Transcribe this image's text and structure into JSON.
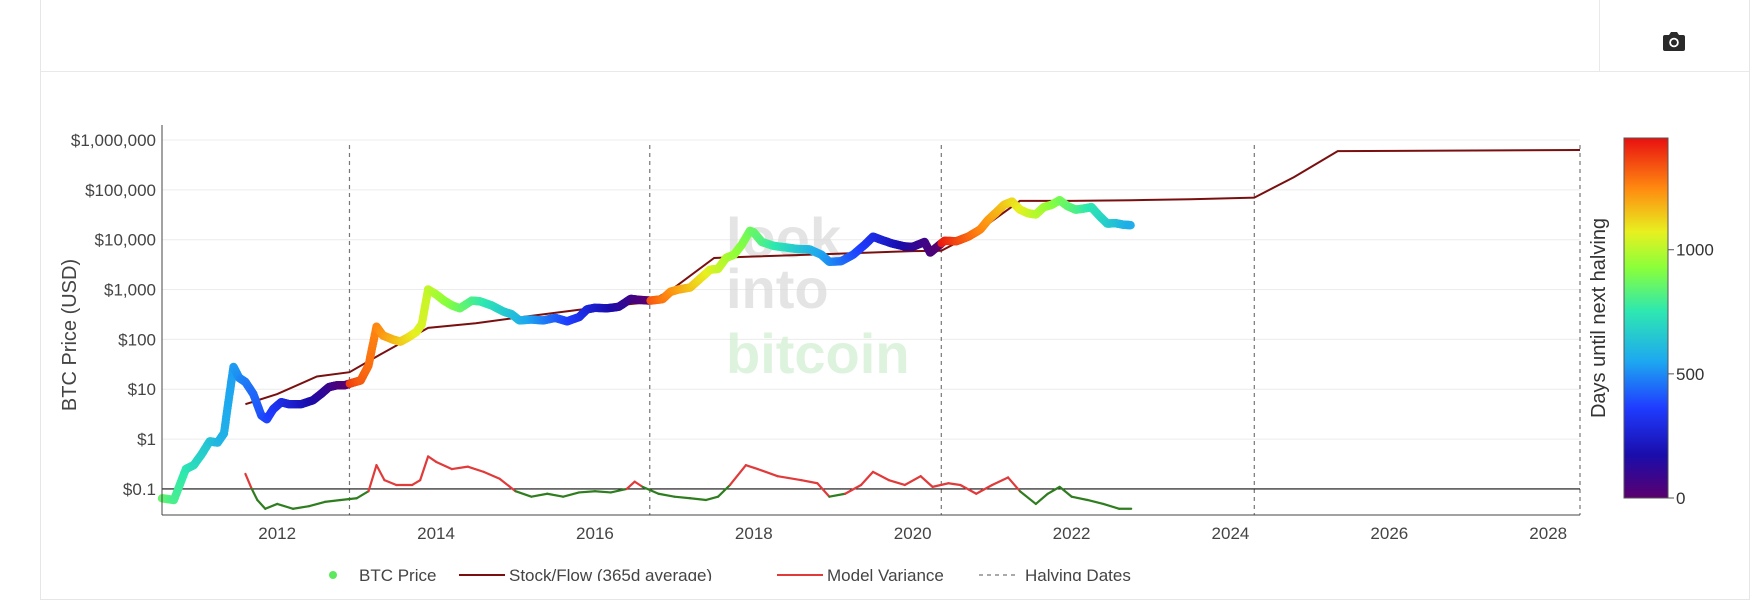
{
  "toolbar": {
    "icon": "camera-icon"
  },
  "chart_data": {
    "type": "line",
    "y_scale": "log",
    "xlim": [
      2010.55,
      2028.4
    ],
    "ylim": [
      0.03,
      2000000
    ],
    "ylabel": "BTC Price (USD)",
    "colorbar_label": "Days until next halving",
    "colorbar_range": [
      0,
      1450
    ],
    "colorbar_ticks": [
      {
        "value": 0,
        "label": "0"
      },
      {
        "value": 500,
        "label": "500"
      },
      {
        "value": 1000,
        "label": "1000"
      }
    ],
    "y_ticks": [
      {
        "value": 0.1,
        "label": "$0.1"
      },
      {
        "value": 1,
        "label": "$1"
      },
      {
        "value": 10,
        "label": "$10"
      },
      {
        "value": 100,
        "label": "$100"
      },
      {
        "value": 1000,
        "label": "$1,000"
      },
      {
        "value": 10000,
        "label": "$10,000"
      },
      {
        "value": 100000,
        "label": "$100,000"
      },
      {
        "value": 1000000,
        "label": "$1,000,000"
      }
    ],
    "x_ticks": [
      {
        "value": 2012,
        "label": "2012"
      },
      {
        "value": 2014,
        "label": "2014"
      },
      {
        "value": 2016,
        "label": "2016"
      },
      {
        "value": 2018,
        "label": "2018"
      },
      {
        "value": 2020,
        "label": "2020"
      },
      {
        "value": 2022,
        "label": "2022"
      },
      {
        "value": 2024,
        "label": "2024"
      },
      {
        "value": 2026,
        "label": "2026"
      },
      {
        "value": 2028,
        "label": "2028"
      }
    ],
    "reference_line": 0.1,
    "halving_dates": [
      2012.91,
      2016.69,
      2020.36,
      2024.3,
      2028.4
    ],
    "colors": {
      "stock_flow": "#7a0f0f",
      "variance_positive": "#e03a3a",
      "variance_negative": "#2e7d1e",
      "halving": "#777777",
      "grid": "#ececec",
      "axis": "#444444",
      "legend_dot": "#5ee85e"
    },
    "series": [
      {
        "name": "BTC Price",
        "kind": "scatter-colored",
        "points": [
          [
            2010.55,
            0.065
          ],
          [
            2010.7,
            0.06
          ],
          [
            2010.85,
            0.25
          ],
          [
            2010.95,
            0.3
          ],
          [
            2011.05,
            0.5
          ],
          [
            2011.15,
            0.9
          ],
          [
            2011.25,
            0.85
          ],
          [
            2011.33,
            1.3
          ],
          [
            2011.4,
            8
          ],
          [
            2011.45,
            28
          ],
          [
            2011.52,
            17
          ],
          [
            2011.6,
            14
          ],
          [
            2011.7,
            8
          ],
          [
            2011.8,
            3
          ],
          [
            2011.87,
            2.5
          ],
          [
            2011.95,
            4
          ],
          [
            2012.05,
            5.5
          ],
          [
            2012.15,
            5
          ],
          [
            2012.3,
            5
          ],
          [
            2012.45,
            6
          ],
          [
            2012.55,
            8
          ],
          [
            2012.65,
            11
          ],
          [
            2012.75,
            12
          ],
          [
            2012.85,
            12
          ],
          [
            2012.95,
            13.5
          ],
          [
            2013.05,
            15
          ],
          [
            2013.15,
            30
          ],
          [
            2013.25,
            180
          ],
          [
            2013.33,
            120
          ],
          [
            2013.45,
            100
          ],
          [
            2013.55,
            90
          ],
          [
            2013.65,
            110
          ],
          [
            2013.75,
            140
          ],
          [
            2013.82,
            200
          ],
          [
            2013.9,
            1000
          ],
          [
            2014.0,
            800
          ],
          [
            2014.1,
            600
          ],
          [
            2014.2,
            480
          ],
          [
            2014.3,
            420
          ],
          [
            2014.45,
            600
          ],
          [
            2014.55,
            580
          ],
          [
            2014.7,
            480
          ],
          [
            2014.85,
            360
          ],
          [
            2014.95,
            320
          ],
          [
            2015.05,
            240
          ],
          [
            2015.2,
            250
          ],
          [
            2015.35,
            240
          ],
          [
            2015.5,
            270
          ],
          [
            2015.65,
            230
          ],
          [
            2015.8,
            280
          ],
          [
            2015.9,
            400
          ],
          [
            2016.0,
            430
          ],
          [
            2016.15,
            420
          ],
          [
            2016.3,
            450
          ],
          [
            2016.45,
            650
          ],
          [
            2016.55,
            620
          ],
          [
            2016.7,
            600
          ],
          [
            2016.85,
            640
          ],
          [
            2016.95,
            900
          ],
          [
            2017.05,
            1000
          ],
          [
            2017.2,
            1100
          ],
          [
            2017.35,
            1800
          ],
          [
            2017.45,
            2500
          ],
          [
            2017.55,
            2600
          ],
          [
            2017.65,
            4300
          ],
          [
            2017.75,
            5000
          ],
          [
            2017.85,
            8000
          ],
          [
            2017.95,
            15000
          ],
          [
            2018.0,
            14000
          ],
          [
            2018.1,
            9000
          ],
          [
            2018.25,
            7500
          ],
          [
            2018.4,
            7000
          ],
          [
            2018.55,
            6500
          ],
          [
            2018.7,
            6400
          ],
          [
            2018.85,
            5000
          ],
          [
            2018.95,
            3600
          ],
          [
            2019.1,
            3700
          ],
          [
            2019.25,
            5000
          ],
          [
            2019.4,
            8000
          ],
          [
            2019.5,
            11500
          ],
          [
            2019.6,
            10000
          ],
          [
            2019.75,
            8300
          ],
          [
            2019.9,
            7300
          ],
          [
            2020.0,
            7200
          ],
          [
            2020.15,
            9000
          ],
          [
            2020.22,
            5500
          ],
          [
            2020.3,
            7000
          ],
          [
            2020.4,
            9500
          ],
          [
            2020.55,
            9300
          ],
          [
            2020.7,
            11500
          ],
          [
            2020.85,
            16000
          ],
          [
            2020.95,
            25000
          ],
          [
            2021.05,
            35000
          ],
          [
            2021.15,
            50000
          ],
          [
            2021.25,
            58000
          ],
          [
            2021.35,
            40000
          ],
          [
            2021.45,
            34000
          ],
          [
            2021.55,
            32000
          ],
          [
            2021.65,
            45000
          ],
          [
            2021.75,
            50000
          ],
          [
            2021.85,
            62000
          ],
          [
            2021.95,
            47000
          ],
          [
            2022.05,
            40000
          ],
          [
            2022.15,
            42000
          ],
          [
            2022.25,
            45000
          ],
          [
            2022.35,
            30000
          ],
          [
            2022.45,
            21000
          ],
          [
            2022.55,
            21500
          ],
          [
            2022.65,
            20000
          ],
          [
            2022.75,
            19500
          ]
        ]
      },
      {
        "name": "Stock/Flow (365d average)",
        "kind": "line",
        "points": [
          [
            2011.6,
            5
          ],
          [
            2012.0,
            8
          ],
          [
            2012.5,
            18
          ],
          [
            2012.91,
            22
          ],
          [
            2013.3,
            50
          ],
          [
            2013.9,
            170
          ],
          [
            2014.5,
            210
          ],
          [
            2015.0,
            270
          ],
          [
            2016.0,
            430
          ],
          [
            2016.69,
            560
          ],
          [
            2017.0,
            1100
          ],
          [
            2017.5,
            4300
          ],
          [
            2018.0,
            4600
          ],
          [
            2019.0,
            5200
          ],
          [
            2020.0,
            5900
          ],
          [
            2020.36,
            6000
          ],
          [
            2020.8,
            14000
          ],
          [
            2021.35,
            60000
          ],
          [
            2022.0,
            60000
          ],
          [
            2022.75,
            62000
          ],
          [
            2023.5,
            65000
          ],
          [
            2024.3,
            70000
          ],
          [
            2024.8,
            180000
          ],
          [
            2025.35,
            600000
          ],
          [
            2028.4,
            630000
          ]
        ]
      },
      {
        "name": "Model Variance",
        "kind": "line",
        "points": [
          [
            2011.6,
            0.2
          ],
          [
            2011.68,
            0.1
          ],
          [
            2011.75,
            0.06
          ],
          [
            2011.85,
            0.04
          ],
          [
            2012.0,
            0.05
          ],
          [
            2012.2,
            0.04
          ],
          [
            2012.4,
            0.045
          ],
          [
            2012.6,
            0.055
          ],
          [
            2012.8,
            0.06
          ],
          [
            2013.0,
            0.065
          ],
          [
            2013.15,
            0.09
          ],
          [
            2013.25,
            0.3
          ],
          [
            2013.35,
            0.15
          ],
          [
            2013.5,
            0.12
          ],
          [
            2013.7,
            0.12
          ],
          [
            2013.8,
            0.15
          ],
          [
            2013.9,
            0.45
          ],
          [
            2014.0,
            0.35
          ],
          [
            2014.2,
            0.25
          ],
          [
            2014.4,
            0.28
          ],
          [
            2014.6,
            0.22
          ],
          [
            2014.8,
            0.16
          ],
          [
            2015.0,
            0.09
          ],
          [
            2015.2,
            0.07
          ],
          [
            2015.4,
            0.08
          ],
          [
            2015.6,
            0.07
          ],
          [
            2015.8,
            0.085
          ],
          [
            2016.0,
            0.09
          ],
          [
            2016.2,
            0.085
          ],
          [
            2016.4,
            0.1
          ],
          [
            2016.5,
            0.14
          ],
          [
            2016.6,
            0.11
          ],
          [
            2016.8,
            0.08
          ],
          [
            2017.0,
            0.07
          ],
          [
            2017.2,
            0.065
          ],
          [
            2017.4,
            0.06
          ],
          [
            2017.55,
            0.07
          ],
          [
            2017.7,
            0.12
          ],
          [
            2017.9,
            0.3
          ],
          [
            2018.05,
            0.25
          ],
          [
            2018.3,
            0.18
          ],
          [
            2018.6,
            0.15
          ],
          [
            2018.8,
            0.13
          ],
          [
            2018.95,
            0.07
          ],
          [
            2019.15,
            0.08
          ],
          [
            2019.35,
            0.12
          ],
          [
            2019.5,
            0.22
          ],
          [
            2019.7,
            0.15
          ],
          [
            2019.9,
            0.12
          ],
          [
            2020.1,
            0.18
          ],
          [
            2020.25,
            0.11
          ],
          [
            2020.45,
            0.13
          ],
          [
            2020.6,
            0.12
          ],
          [
            2020.8,
            0.08
          ],
          [
            2021.0,
            0.12
          ],
          [
            2021.2,
            0.17
          ],
          [
            2021.35,
            0.09
          ],
          [
            2021.55,
            0.05
          ],
          [
            2021.7,
            0.08
          ],
          [
            2021.85,
            0.11
          ],
          [
            2022.0,
            0.07
          ],
          [
            2022.2,
            0.06
          ],
          [
            2022.4,
            0.05
          ],
          [
            2022.6,
            0.04
          ],
          [
            2022.75,
            0.04
          ]
        ]
      },
      {
        "name": "Halving Dates",
        "kind": "vertical-dashed"
      }
    ],
    "legend": [
      {
        "label": "BTC Price",
        "style": "dot"
      },
      {
        "label": "Stock/Flow (365d average)",
        "style": "dark-line"
      },
      {
        "label": "Model Variance",
        "style": "red-line"
      },
      {
        "label": "Halving Dates",
        "style": "dashed"
      }
    ],
    "watermark": {
      "lines": [
        "look",
        "into",
        "bitcoin"
      ]
    }
  }
}
